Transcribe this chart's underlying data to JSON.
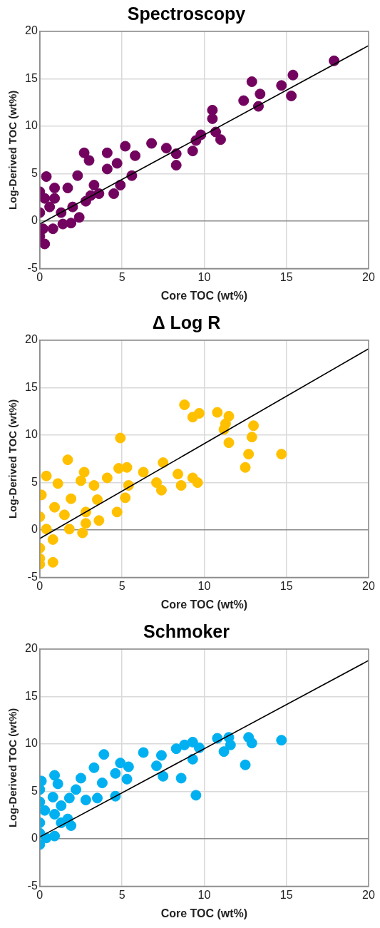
{
  "chart_data": [
    {
      "type": "scatter",
      "title": "Spectroscopy",
      "xlabel": "Core TOC (wt%)",
      "ylabel": "Log-Derived TOC (wt%)",
      "xlim": [
        0,
        20
      ],
      "xticks": [
        0,
        5,
        10,
        15,
        20
      ],
      "ylim": [
        -5,
        20
      ],
      "yticks": [
        -5,
        0,
        5,
        10,
        15,
        20
      ],
      "grid": true,
      "legend": false,
      "marker": "circle",
      "series": [
        {
          "color": "#72045f",
          "x": [
            17.9,
            15.4,
            14.7,
            15.3,
            12.9,
            13.4,
            12.4,
            13.3,
            10.5,
            10.5,
            9.8,
            9.5,
            11.0,
            10.7,
            9.3,
            6.8,
            7.7,
            8.3,
            8.3,
            5.2,
            5.8,
            5.6,
            4.7,
            4.1,
            2.7,
            3.0,
            2.3,
            3.6,
            4.5,
            4.9,
            4.1,
            3.3,
            2.8,
            2.4,
            1.9,
            1.4,
            1.7,
            0.9,
            0.4,
            0.0,
            0.3,
            0.0,
            0.0,
            0.6,
            1.3,
            0.8,
            0.2,
            2.0,
            3.1,
            0.3,
            0.9
          ],
          "values": [
            16.9,
            15.4,
            14.3,
            13.2,
            14.7,
            13.4,
            12.7,
            12.1,
            11.7,
            10.8,
            9.1,
            8.5,
            8.6,
            9.4,
            7.4,
            8.2,
            7.7,
            7.1,
            5.9,
            7.9,
            6.9,
            4.8,
            6.1,
            7.2,
            7.2,
            6.4,
            4.8,
            2.9,
            2.9,
            3.8,
            5.5,
            3.8,
            2.1,
            0.4,
            -0.2,
            -0.3,
            3.5,
            3.5,
            4.7,
            3.1,
            -2.4,
            -1.6,
            0.9,
            1.5,
            0.9,
            -0.8,
            -0.8,
            1.5,
            2.7,
            2.4,
            2.4
          ]
        },
        {
          "type": "line",
          "color": "#000000",
          "marker": "none",
          "x": [
            0,
            20
          ],
          "values": [
            -0.3,
            18.5
          ]
        }
      ]
    },
    {
      "type": "scatter",
      "title": "Δ Log R",
      "xlabel": "Core TOC (wt%)",
      "ylabel": "Log-Derived TOC (wt%)",
      "xlim": [
        0,
        20
      ],
      "xticks": [
        0,
        5,
        10,
        15,
        20
      ],
      "ylim": [
        -5,
        20
      ],
      "yticks": [
        -5,
        0,
        5,
        10,
        15,
        20
      ],
      "grid": true,
      "legend": false,
      "marker": "circle",
      "series": [
        {
          "color": "#ffc000",
          "x": [
            8.8,
            9.3,
            9.7,
            10.8,
            11.5,
            11.3,
            11.2,
            13.0,
            12.9,
            11.5,
            12.7,
            14.7,
            12.5,
            4.9,
            1.7,
            0.4,
            1.1,
            2.7,
            2.5,
            4.8,
            5.3,
            6.3,
            7.5,
            8.4,
            9.3,
            9.6,
            7.1,
            7.4,
            8.6,
            5.4,
            5.2,
            4.1,
            3.3,
            3.5,
            4.7,
            1.9,
            0.1,
            0.9,
            0.0,
            1.5,
            2.8,
            3.6,
            2.6,
            0.8,
            0.4,
            0.0,
            0.0,
            0.0,
            0.8,
            1.8,
            2.8
          ],
          "values": [
            13.2,
            11.9,
            12.3,
            12.4,
            12.0,
            11.2,
            10.6,
            11.0,
            9.8,
            9.2,
            8.0,
            8.0,
            6.6,
            9.7,
            7.4,
            5.7,
            4.9,
            6.1,
            5.2,
            6.5,
            6.6,
            6.1,
            7.1,
            5.9,
            5.5,
            5.0,
            5.0,
            4.2,
            4.7,
            4.7,
            3.4,
            5.5,
            4.7,
            3.2,
            1.9,
            3.3,
            3.7,
            2.4,
            1.4,
            1.6,
            0.7,
            1.0,
            -0.3,
            -1.0,
            0.1,
            -1.9,
            -3.0,
            -3.6,
            -3.4,
            0.1,
            1.9
          ]
        },
        {
          "type": "line",
          "color": "#000000",
          "marker": "none",
          "x": [
            0,
            20
          ],
          "values": [
            -0.9,
            19.1
          ]
        }
      ]
    },
    {
      "type": "scatter",
      "title": "Schmoker",
      "xlabel": "Core TOC (wt%)",
      "ylabel": "Log-Derived TOC (wt%)",
      "xlim": [
        0,
        20
      ],
      "xticks": [
        0,
        5,
        10,
        15,
        20
      ],
      "ylim": [
        -5,
        20
      ],
      "yticks": [
        -5,
        0,
        5,
        10,
        15,
        20
      ],
      "grid": true,
      "legend": false,
      "marker": "circle",
      "series": [
        {
          "color": "#00b0f0",
          "x": [
            14.7,
            12.7,
            12.9,
            10.8,
            11.5,
            11.6,
            11.2,
            12.5,
            9.3,
            9.7,
            8.8,
            8.3,
            9.3,
            9.5,
            8.6,
            7.5,
            7.1,
            7.4,
            6.3,
            3.9,
            4.9,
            5.4,
            5.3,
            4.6,
            4.6,
            3.3,
            3.8,
            3.5,
            2.5,
            2.8,
            2.2,
            1.8,
            0.9,
            1.1,
            0.1,
            0.0,
            0.0,
            0.8,
            1.3,
            0.3,
            0.9,
            1.9,
            1.7,
            0.0,
            0.0,
            0.9,
            0.0,
            0.4,
            1.3
          ],
          "values": [
            10.4,
            10.7,
            10.1,
            10.6,
            10.7,
            9.9,
            9.2,
            7.8,
            10.2,
            9.6,
            9.9,
            9.5,
            8.4,
            4.6,
            6.4,
            6.6,
            7.7,
            8.8,
            9.1,
            8.9,
            8.0,
            7.6,
            6.3,
            6.9,
            4.5,
            7.5,
            5.9,
            4.3,
            6.4,
            4.1,
            5.2,
            4.3,
            6.7,
            5.8,
            6.1,
            5.2,
            3.9,
            4.4,
            3.5,
            3.0,
            2.6,
            1.4,
            2.1,
            1.7,
            0.6,
            0.3,
            -0.6,
            0.1,
            1.7
          ]
        },
        {
          "type": "line",
          "color": "#000000",
          "marker": "none",
          "x": [
            0,
            20
          ],
          "values": [
            0.2,
            18.8
          ]
        }
      ]
    }
  ]
}
